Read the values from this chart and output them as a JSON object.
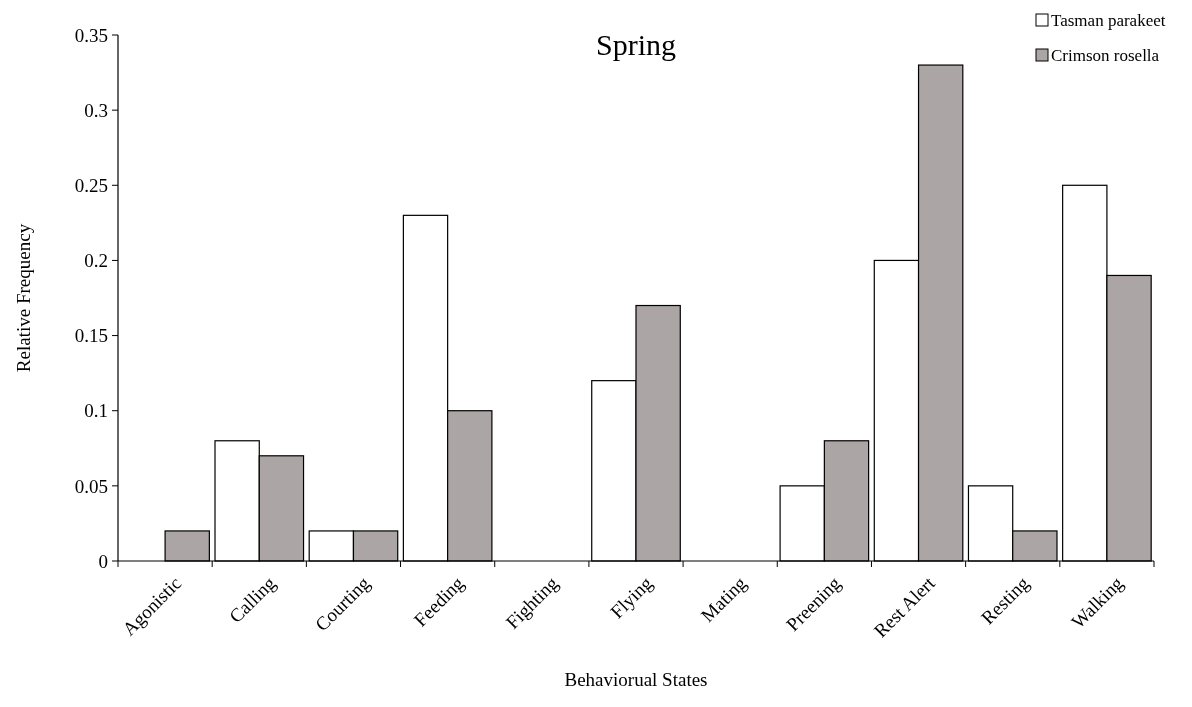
{
  "chart_data": {
    "type": "bar",
    "title": "Spring",
    "xlabel": "Behaviorual States",
    "ylabel": "Relative Frequency",
    "categories": [
      "Agonistic",
      "Calling",
      "Courting",
      "Feeding",
      "Fighting",
      "Flying",
      "Mating",
      "Preening",
      "Rest Alert",
      "Resting",
      "Walking"
    ],
    "series": [
      {
        "name": "Tasman parakeet",
        "color": "#ffffff",
        "values": [
          0,
          0.08,
          0.02,
          0.23,
          0,
          0.12,
          0,
          0.05,
          0.2,
          0.05,
          0.25
        ]
      },
      {
        "name": "Crimson rosella",
        "color": "#aba6a5",
        "values": [
          0.02,
          0.07,
          0.02,
          0.1,
          0,
          0.17,
          0,
          0.08,
          0.33,
          0.02,
          0.19
        ]
      }
    ],
    "ylim": [
      0,
      0.35
    ],
    "yticks": [
      0,
      0.05,
      0.1,
      0.15,
      0.2,
      0.25,
      0.3,
      0.35
    ],
    "grid": false,
    "legend": "top right"
  }
}
